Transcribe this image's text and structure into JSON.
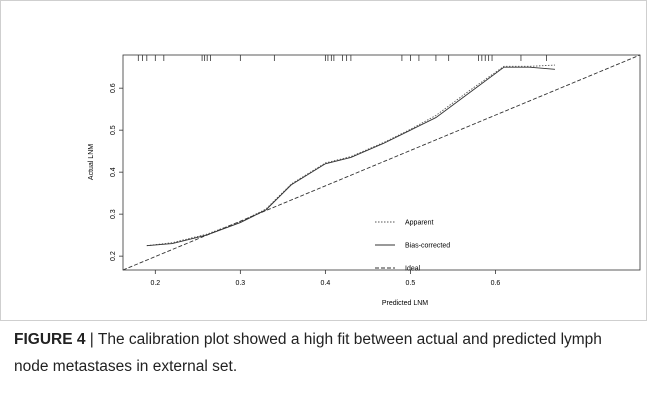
{
  "chart_data": {
    "type": "line",
    "xlabel": "Predicted LNM",
    "ylabel": "Actual LNM",
    "xlim": [
      0.162,
      0.77
    ],
    "ylim": [
      0.167,
      0.679
    ],
    "xticks": [
      0.2,
      0.3,
      0.4,
      0.5,
      0.6
    ],
    "yticks": [
      0.2,
      0.3,
      0.4,
      0.5,
      0.6
    ],
    "rug": [
      0.18,
      0.185,
      0.19,
      0.2,
      0.21,
      0.255,
      0.258,
      0.261,
      0.265,
      0.3,
      0.34,
      0.4,
      0.403,
      0.407,
      0.41,
      0.42,
      0.425,
      0.43,
      0.49,
      0.5,
      0.51,
      0.53,
      0.545,
      0.58,
      0.584,
      0.588,
      0.592,
      0.596,
      0.63,
      0.66
    ],
    "series": [
      {
        "name": "Apparent",
        "color": "#555555",
        "dash": "dotted",
        "x": [
          0.19,
          0.22,
          0.26,
          0.3,
          0.33,
          0.36,
          0.4,
          0.43,
          0.47,
          0.5,
          0.53,
          0.57,
          0.61,
          0.64,
          0.67
        ],
        "values": [
          0.225,
          0.232,
          0.252,
          0.282,
          0.312,
          0.372,
          0.422,
          0.437,
          0.472,
          0.502,
          0.535,
          0.595,
          0.652,
          0.652,
          0.655
        ]
      },
      {
        "name": "Bias-corrected",
        "color": "#333333",
        "dash": "solid",
        "x": [
          0.19,
          0.22,
          0.26,
          0.3,
          0.33,
          0.36,
          0.4,
          0.43,
          0.47,
          0.5,
          0.53,
          0.57,
          0.61,
          0.64,
          0.67
        ],
        "values": [
          0.225,
          0.23,
          0.25,
          0.28,
          0.31,
          0.37,
          0.42,
          0.435,
          0.47,
          0.5,
          0.53,
          0.59,
          0.65,
          0.65,
          0.645
        ]
      },
      {
        "name": "Ideal",
        "color": "#333333",
        "dash": "dashed",
        "x": [
          0.162,
          0.77
        ],
        "values": [
          0.167,
          0.679
        ]
      }
    ]
  },
  "caption": {
    "label": "FIGURE 4",
    "text": "| The calibration plot showed a high fit between actual and predicted lymph node metastases in external set."
  }
}
